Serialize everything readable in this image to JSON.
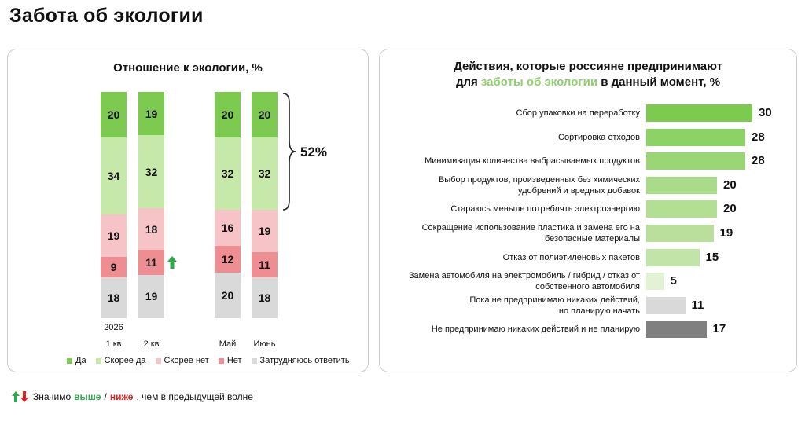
{
  "page": {
    "title": "Забота об экологии"
  },
  "left_chart_title": "Отношение к экологии, %",
  "right_chart_title": {
    "part1": "Действия, которые россияне ",
    "part2": "предпринимают",
    "part3": "для ",
    "part4": "заботы об экологии",
    "part5": " в данный момент, %"
  },
  "brace_label": "52%",
  "footnote": {
    "prefix": "Значимо ",
    "higher": "выше",
    "sep": " / ",
    "lower": "ниже",
    "suffix": ", чем в предыдущей волне"
  },
  "colors": {
    "da": "#7ccb50",
    "skoree_da": "#c6e8a8",
    "skoree_net": "#f6c4c6",
    "net": "#ee8e93",
    "zatrud": "#d9d9d9",
    "arrow_up": "#2ea84a",
    "arrow_down": "#e02020"
  },
  "chart_data": [
    {
      "type": "bar",
      "stacked": true,
      "title": "Отношение к экологии, %",
      "year_label": "2026",
      "categories": [
        "1 кв",
        "2 кв",
        "Май",
        "Июнь"
      ],
      "series": [
        {
          "name": "Да",
          "color": "#7ccb50",
          "values": [
            20,
            19,
            20,
            20
          ]
        },
        {
          "name": "Скорее да",
          "color": "#c6e8a8",
          "values": [
            34,
            32,
            32,
            32
          ]
        },
        {
          "name": "Скорее нет",
          "color": "#f6c4c6",
          "values": [
            19,
            18,
            16,
            19
          ]
        },
        {
          "name": "Нет",
          "color": "#ee8e93",
          "values": [
            9,
            11,
            12,
            11
          ]
        },
        {
          "name": "Затрудняюсь ответить",
          "color": "#d9d9d9",
          "values": [
            18,
            19,
            20,
            18
          ]
        }
      ],
      "significant_up": [
        {
          "category": "2 кв",
          "series": "Нет"
        }
      ],
      "annotation": "52%",
      "legend": "bottom"
    },
    {
      "type": "bar",
      "orientation": "horizontal",
      "title": "Действия, которые россияне предпринимают для заботы об экологии в данный момент, %",
      "categories": [
        [
          "Сбор упаковки на переработку"
        ],
        [
          "Сортировка отходов"
        ],
        [
          "Минимизация количества выбрасываемых продуктов"
        ],
        [
          "Выбор продуктов, произведенных без химических",
          "удобрений и вредных добавок"
        ],
        [
          "Стараюсь меньше потреблять электроэнергию"
        ],
        [
          "Сокращение использование пластика и замена его на",
          "безопасные материалы"
        ],
        [
          "Отказ от полиэтиленовых пакетов"
        ],
        [
          "Замена автомобиля на электромобиль / гибрид / отказ от",
          "собственного автомобиля"
        ],
        [
          "Пока не предпринимаю никаких действий,",
          "но планирую начать"
        ],
        [
          "Не предпринимаю никаких действий и не планирую"
        ]
      ],
      "values": [
        30,
        28,
        28,
        20,
        20,
        19,
        15,
        5,
        11,
        17
      ],
      "bar_colors": [
        "#7ccb50",
        "#8dd265",
        "#9ad676",
        "#a9dc88",
        "#b2df92",
        "#badf9d",
        "#c3e4a8",
        "#e2f2d2",
        "#d9d9d9",
        "#808080"
      ]
    }
  ]
}
